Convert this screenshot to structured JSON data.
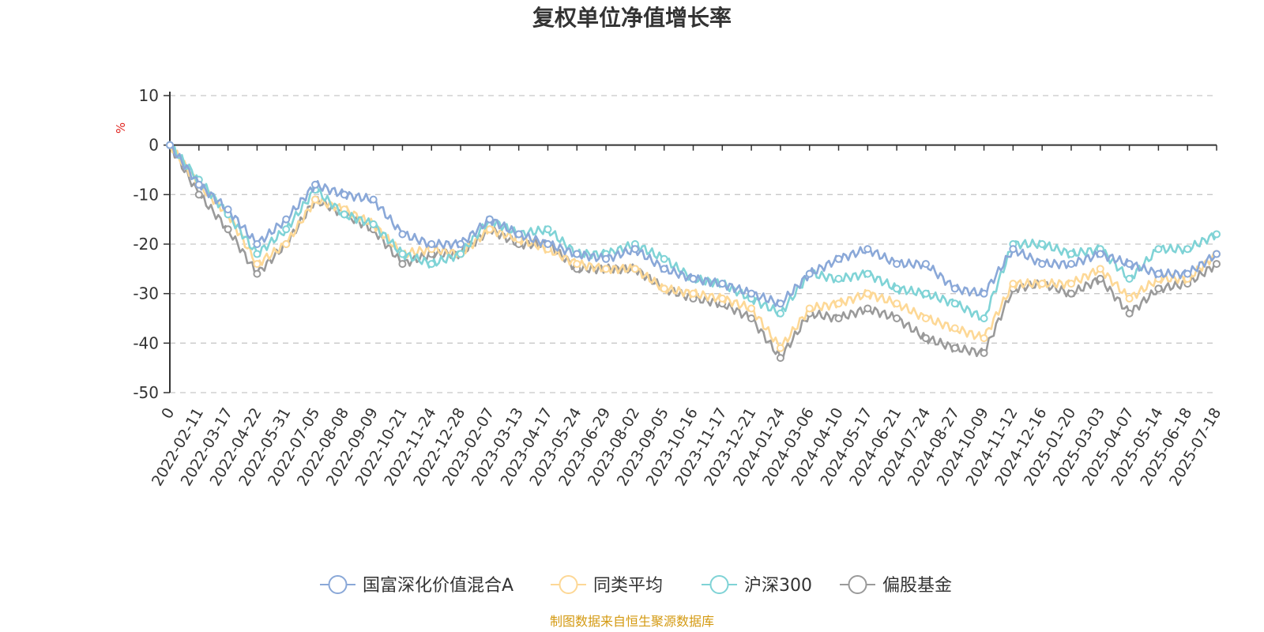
{
  "colors": {
    "fund": "#8aa8d8",
    "peer": "#fdd896",
    "hs300": "#7fd3d6",
    "equity": "#9a9a9a",
    "source": "#d49a12",
    "unit": "#e0231e"
  },
  "chart_data": {
    "type": "line",
    "title": "复权单位净值增长率",
    "ylabel": "%",
    "ylim": [
      -50,
      10
    ],
    "yticks": [
      "10",
      "0",
      "-10",
      "-20",
      "-30",
      "-40",
      "-50"
    ],
    "yticks_values": [
      10,
      0,
      -10,
      -20,
      -30,
      -40,
      -50
    ],
    "grid": true,
    "legend_position": "bottom",
    "source_note": "制图数据来自恒生聚源数据库",
    "x_labels": [
      "0",
      "2022-02-11",
      "2022-03-17",
      "2022-04-22",
      "2022-05-31",
      "2022-07-05",
      "2022-08-08",
      "2022-09-09",
      "2022-10-21",
      "2022-11-24",
      "2022-12-28",
      "2023-02-07",
      "2023-03-13",
      "2023-04-17",
      "2023-05-24",
      "2023-06-29",
      "2023-08-02",
      "2023-09-05",
      "2023-10-16",
      "2023-11-17",
      "2023-12-21",
      "2024-01-24",
      "2024-03-06",
      "2024-04-10",
      "2024-05-17",
      "2024-06-21",
      "2024-07-24",
      "2024-08-27",
      "2024-10-09",
      "2024-11-12",
      "2024-12-16",
      "2025-01-20",
      "2025-03-03",
      "2025-04-07",
      "2025-05-14",
      "2025-06-18",
      "2025-07-18"
    ],
    "series": [
      {
        "name": "国富深化价值混合A",
        "values": [
          0,
          -8,
          -13,
          -20,
          -15,
          -8,
          -10,
          -11,
          -18,
          -20,
          -20,
          -15,
          -18,
          -20,
          -22,
          -23,
          -21,
          -25,
          -27,
          -28,
          -30,
          -32,
          -26,
          -23,
          -21,
          -24,
          -24,
          -29,
          -30,
          -21,
          -24,
          -24,
          -22,
          -24,
          -26,
          -26,
          -22
        ]
      },
      {
        "name": "同类平均",
        "values": [
          0,
          -8,
          -14,
          -24,
          -20,
          -11,
          -13,
          -16,
          -22,
          -21,
          -22,
          -17,
          -19,
          -21,
          -24,
          -25,
          -25,
          -29,
          -30,
          -31,
          -33,
          -41,
          -33,
          -32,
          -30,
          -32,
          -35,
          -37,
          -39,
          -28,
          -28,
          -28,
          -25,
          -31,
          -27,
          -27,
          -22
        ]
      },
      {
        "name": "沪深300",
        "values": [
          0,
          -7,
          -14,
          -22,
          -17,
          -9,
          -14,
          -16,
          -22,
          -24,
          -22,
          -15,
          -18,
          -17,
          -22,
          -22,
          -20,
          -23,
          -27,
          -28,
          -31,
          -34,
          -26,
          -27,
          -26,
          -29,
          -30,
          -32,
          -35,
          -20,
          -20,
          -22,
          -21,
          -27,
          -21,
          -21,
          -18
        ]
      },
      {
        "name": "偏股基金",
        "values": [
          0,
          -10,
          -17,
          -26,
          -20,
          -11,
          -14,
          -17,
          -24,
          -22,
          -22,
          -17,
          -20,
          -20,
          -25,
          -25,
          -25,
          -29,
          -31,
          -32,
          -35,
          -43,
          -34,
          -35,
          -33,
          -35,
          -39,
          -41,
          -42,
          -29,
          -28,
          -30,
          -27,
          -34,
          -29,
          -28,
          -24
        ]
      }
    ]
  },
  "legend": [
    {
      "name": "国富深化价值混合A",
      "color": "#8aa8d8"
    },
    {
      "name": "同类平均",
      "color": "#fdd896"
    },
    {
      "name": "沪深300",
      "color": "#7fd3d6"
    },
    {
      "name": "偏股基金",
      "color": "#9a9a9a"
    }
  ]
}
